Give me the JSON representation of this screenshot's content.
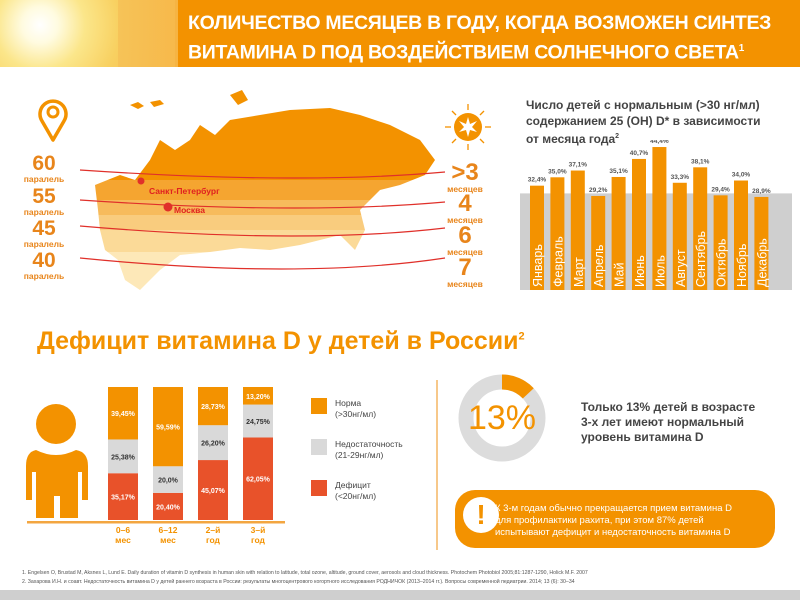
{
  "header": {
    "title_line1": "КОЛИЧЕСТВО МЕСЯЦЕВ В ГОДУ, КОГДА ВОЗМОЖЕН СИНТЕЗ",
    "title_line2": "ВИТАМИНА D ПОД ВОЗДЕЙСТВИЕМ СОЛНЕЧНОГО СВЕТА",
    "title_sup": "1"
  },
  "map": {
    "parallels": [
      {
        "num": "60",
        "label": "паралель"
      },
      {
        "num": "55",
        "label": "паралель"
      },
      {
        "num": "45",
        "label": "паралель"
      },
      {
        "num": "40",
        "label": "паралель"
      }
    ],
    "months": [
      {
        "num": ">3",
        "label": "месяцев"
      },
      {
        "num": "4",
        "label": "месяцев"
      },
      {
        "num": "6",
        "label": "месяцев"
      },
      {
        "num": "7",
        "label": "месяцев"
      }
    ],
    "cities": [
      "Санкт-Петербург",
      "Москва"
    ]
  },
  "section_title": "Дефицит витамина D у детей в России",
  "section_sup": "2",
  "donut": {
    "value_label": "13%",
    "value": 13,
    "text": [
      "Только 13% детей в возрасте",
      "3-х лет имеют нормальный",
      "уровень витамина D"
    ]
  },
  "callout": {
    "icon": "exclamation-icon",
    "mark": "!",
    "text": [
      "К 3-м годам обычно прекращается прием витамина D",
      "для профилактики рахита, при этом 87% детей",
      "испытывают дефицит и недостаточность витамина D"
    ]
  },
  "footnotes": [
    "1.  Engelsen O, Brustad M, Aksnes L, Lund E. Daily duration of vitamin D synthesis in human skin with relation to latitude, total ozone, altitude, ground cover, aerosols and cloud thickness. Photochem Photobiol 2005;81:1287-1290, Holick M.F. 2007",
    "2.  Захарова И.Н. и соавт. Недостаточность витамина D у детей раннего возраста в России: результаты многоцентрового когортного исследования РОДНИЧОК (2013–2014 гг.). Вопросы современной педиатрии. 2014; 13 (6): 30–34"
  ],
  "colors": {
    "orange": "#f39200",
    "red": "#e8522a",
    "gray": "#d9d9d9",
    "text": "#444444"
  },
  "chart_data": [
    {
      "type": "bar",
      "title": "Число детей с нормальным (>30 нг/мл) содержанием 25 (ОН) D* в зависимости от месяца года",
      "title_lines": [
        "Число детей с нормальным (>30 нг/мл)",
        "содержанием 25 (ОН) D* в зависимости",
        "от месяца года"
      ],
      "title_sup": "2",
      "categories": [
        "Январь",
        "Февраль",
        "Март",
        "Апрель",
        "Май",
        "Июнь",
        "Июль",
        "Август",
        "Сентябрь",
        "Октябрь",
        "Ноябрь",
        "Декабрь"
      ],
      "values": [
        32.4,
        35.0,
        37.1,
        29.2,
        35.1,
        40.7,
        44.4,
        33.3,
        38.1,
        29.4,
        34.0,
        28.9
      ],
      "labels": [
        "32,4%",
        "35,0%",
        "37,1%",
        "29,2%",
        "35,1%",
        "40,7%",
        "44,4%",
        "33,3%",
        "38,1%",
        "29,4%",
        "34,0%",
        "28,9%"
      ],
      "reference_band": 30,
      "ylim": [
        0,
        46
      ]
    },
    {
      "type": "bar",
      "stacked": true,
      "categories": [
        [
          "0–6",
          "мес"
        ],
        [
          "6–12",
          "мес"
        ],
        [
          "2–й",
          "год"
        ],
        [
          "3–й",
          "год"
        ]
      ],
      "series": [
        {
          "name": "Дефицит",
          "name_sub": "(<20нг/мл)",
          "color": "#e8522a",
          "values": [
            35.17,
            20.4,
            45.07,
            62.05
          ],
          "labels": [
            "35,17%",
            "20,40%",
            "45,07%",
            "62,05%"
          ]
        },
        {
          "name": "Недостаточность",
          "name_sub": "(21-29нг/мл)",
          "color": "#d9d9d9",
          "values": [
            25.38,
            20.0,
            26.2,
            24.75
          ],
          "labels": [
            "25,38%",
            "20,0%",
            "26,20%",
            "24,75%"
          ]
        },
        {
          "name": "Норма",
          "name_sub": "(>30нг/мл)",
          "color": "#f39200",
          "values": [
            39.45,
            59.59,
            28.73,
            13.2
          ],
          "labels": [
            "39,45%",
            "59,59%",
            "28,73%",
            "13,20%"
          ]
        }
      ],
      "ylim": [
        0,
        100
      ]
    }
  ]
}
